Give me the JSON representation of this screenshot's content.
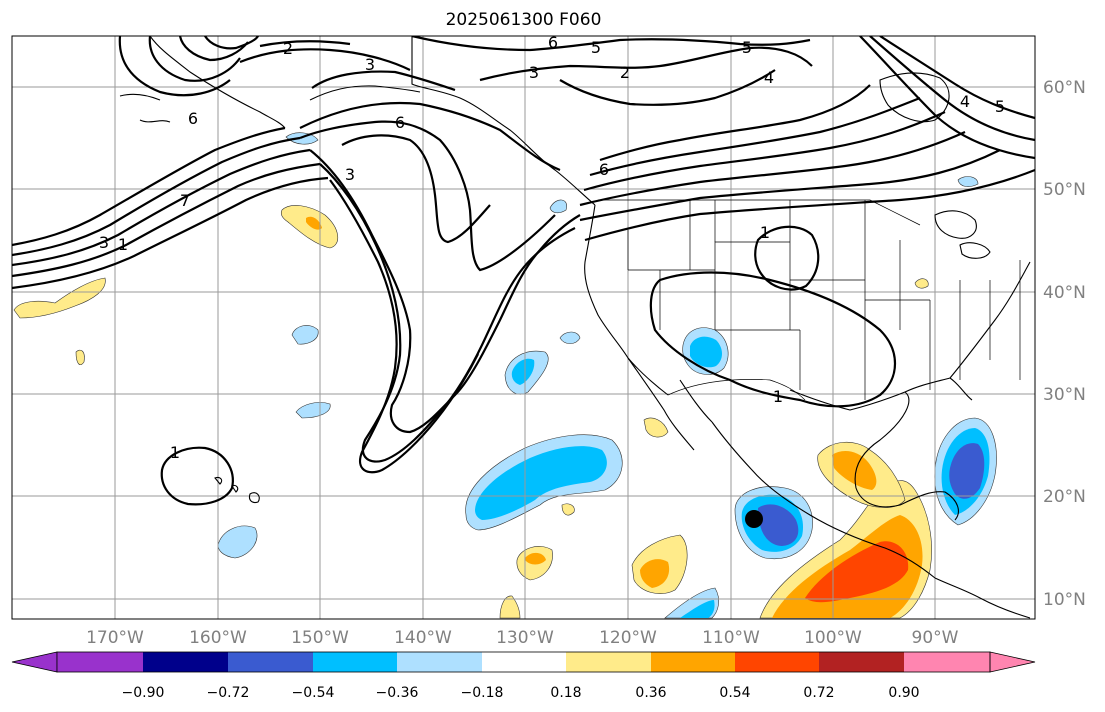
{
  "title": "2025061300 F060",
  "lon_labels": [
    "170°W",
    "160°W",
    "150°W",
    "140°W",
    "130°W",
    "120°W",
    "110°W",
    "100°W",
    "90°W"
  ],
  "lat_labels": [
    "60°N",
    "50°N",
    "40°N",
    "30°N",
    "20°N",
    "10°N"
  ],
  "colorbar": {
    "ticks": [
      "−0.90",
      "−0.72",
      "−0.54",
      "−0.36",
      "−0.18",
      "0.18",
      "0.36",
      "0.54",
      "0.72",
      "0.90"
    ],
    "colors": [
      "#9932cc",
      "#00008b",
      "#3a5bd0",
      "#00bfff",
      "#aee0ff",
      "#ffffff",
      "#ffeb8a",
      "#ffa500",
      "#ff4500",
      "#b22222",
      "#ff85b0"
    ]
  },
  "contour_labels": [
    "2",
    "3",
    "6",
    "5",
    "4",
    "6",
    "3",
    "2",
    "3",
    "6",
    "5",
    "4",
    "3",
    "7",
    "1",
    "1",
    "1",
    "1",
    "6",
    "5"
  ],
  "marker": "storm-center"
}
